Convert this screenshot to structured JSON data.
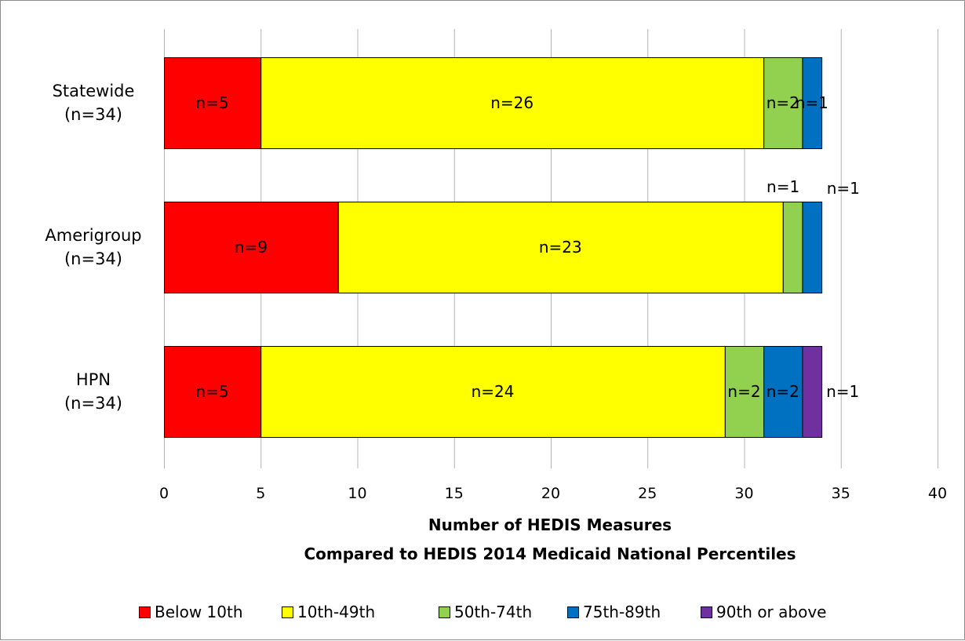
{
  "chart_data": {
    "type": "bar",
    "orientation": "horizontal",
    "stacked": true,
    "categories": [
      [
        "Statewide",
        "(n=34)"
      ],
      [
        "Amerigroup",
        "(n=34)"
      ],
      [
        "HPN",
        "(n=34)"
      ]
    ],
    "series": [
      {
        "name": "Below 10th",
        "color": "#ff0000",
        "values": [
          5,
          9,
          5
        ]
      },
      {
        "name": "10th-49th",
        "color": "#ffff00",
        "values": [
          26,
          23,
          24
        ]
      },
      {
        "name": "50th-74th",
        "color": "#92d050",
        "values": [
          2,
          1,
          2
        ]
      },
      {
        "name": "75th-89th",
        "color": "#0070c0",
        "values": [
          1,
          1,
          2
        ]
      },
      {
        "name": "90th or above",
        "color": "#7030a0",
        "values": [
          0,
          0,
          1
        ]
      }
    ],
    "data_labels": [
      [
        "n=5",
        "n=26",
        "n=2",
        "n=1",
        ""
      ],
      [
        "n=9",
        "n=23",
        "n=1",
        "n=1",
        ""
      ],
      [
        "n=5",
        "n=24",
        "n=2",
        "n=2",
        "n=1"
      ]
    ],
    "xlabel": [
      "Number of HEDIS Measures",
      "Compared to HEDIS 2014 Medicaid National Percentiles"
    ],
    "ylabel": "",
    "xlim": [
      0,
      40
    ],
    "xticks": [
      0,
      5,
      10,
      15,
      20,
      25,
      30,
      35,
      40
    ],
    "grid": true,
    "legend_position": "bottom"
  }
}
